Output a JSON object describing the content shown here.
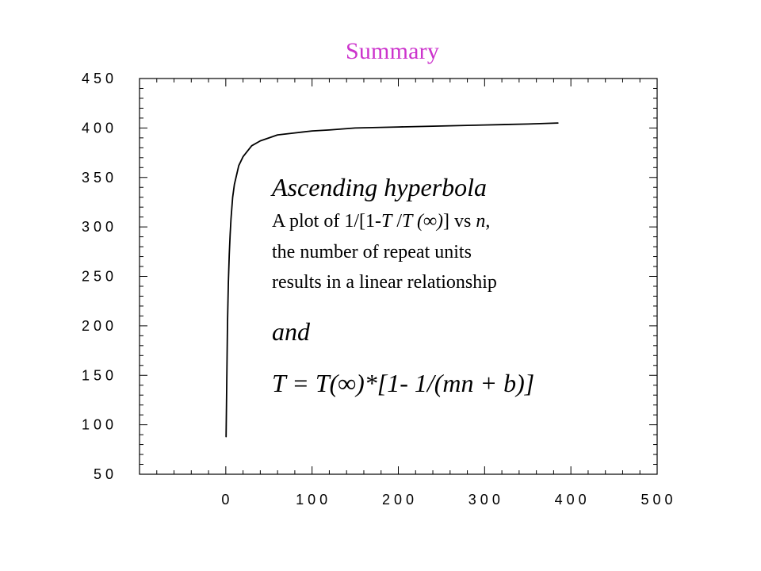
{
  "title": "Summary",
  "title_color": "#cc33cc",
  "chart_data": {
    "type": "line",
    "title": "Summary",
    "xlabel": "",
    "ylabel": "",
    "xlim": [
      -100,
      500
    ],
    "ylim": [
      50,
      450
    ],
    "x_ticks": [
      0,
      100,
      200,
      300,
      400,
      500
    ],
    "y_ticks": [
      50,
      100,
      150,
      200,
      250,
      300,
      350,
      400,
      450
    ],
    "x_tick_labels": [
      "0",
      "100",
      "200",
      "300",
      "400",
      "500"
    ],
    "y_tick_labels": [
      "50",
      "100",
      "150",
      "200",
      "250",
      "300",
      "350",
      "400",
      "450"
    ],
    "grid": false,
    "series": [
      {
        "color": "#000000",
        "x": [
          0.3,
          2,
          3,
          4,
          5,
          6,
          8,
          10,
          15,
          20,
          30,
          40,
          50,
          60,
          70,
          80,
          100,
          120,
          150,
          200,
          250,
          300,
          350,
          385
        ],
        "y": [
          88,
          203,
          244,
          272,
          292,
          308,
          330,
          343,
          362,
          371,
          382,
          387,
          390,
          393,
          394,
          395,
          397,
          398,
          400,
          401,
          402,
          403,
          404,
          405
        ]
      }
    ]
  },
  "annotation": {
    "heading": "Ascending hyperbola",
    "line1_prefix": "A plot of  1/[1-",
    "line1_var1": "T",
    "line1_mid": " /",
    "line1_var2": "T",
    "line1_inf": " (∞)",
    "line1_suffix": "] vs ",
    "line1_var3": "n",
    "line1_end": ",",
    "line2": "the number of repeat units",
    "line3": "results in a linear relationship",
    "connector": "and",
    "equation": "T = T(∞)*[1- 1/(mn + b)]"
  }
}
